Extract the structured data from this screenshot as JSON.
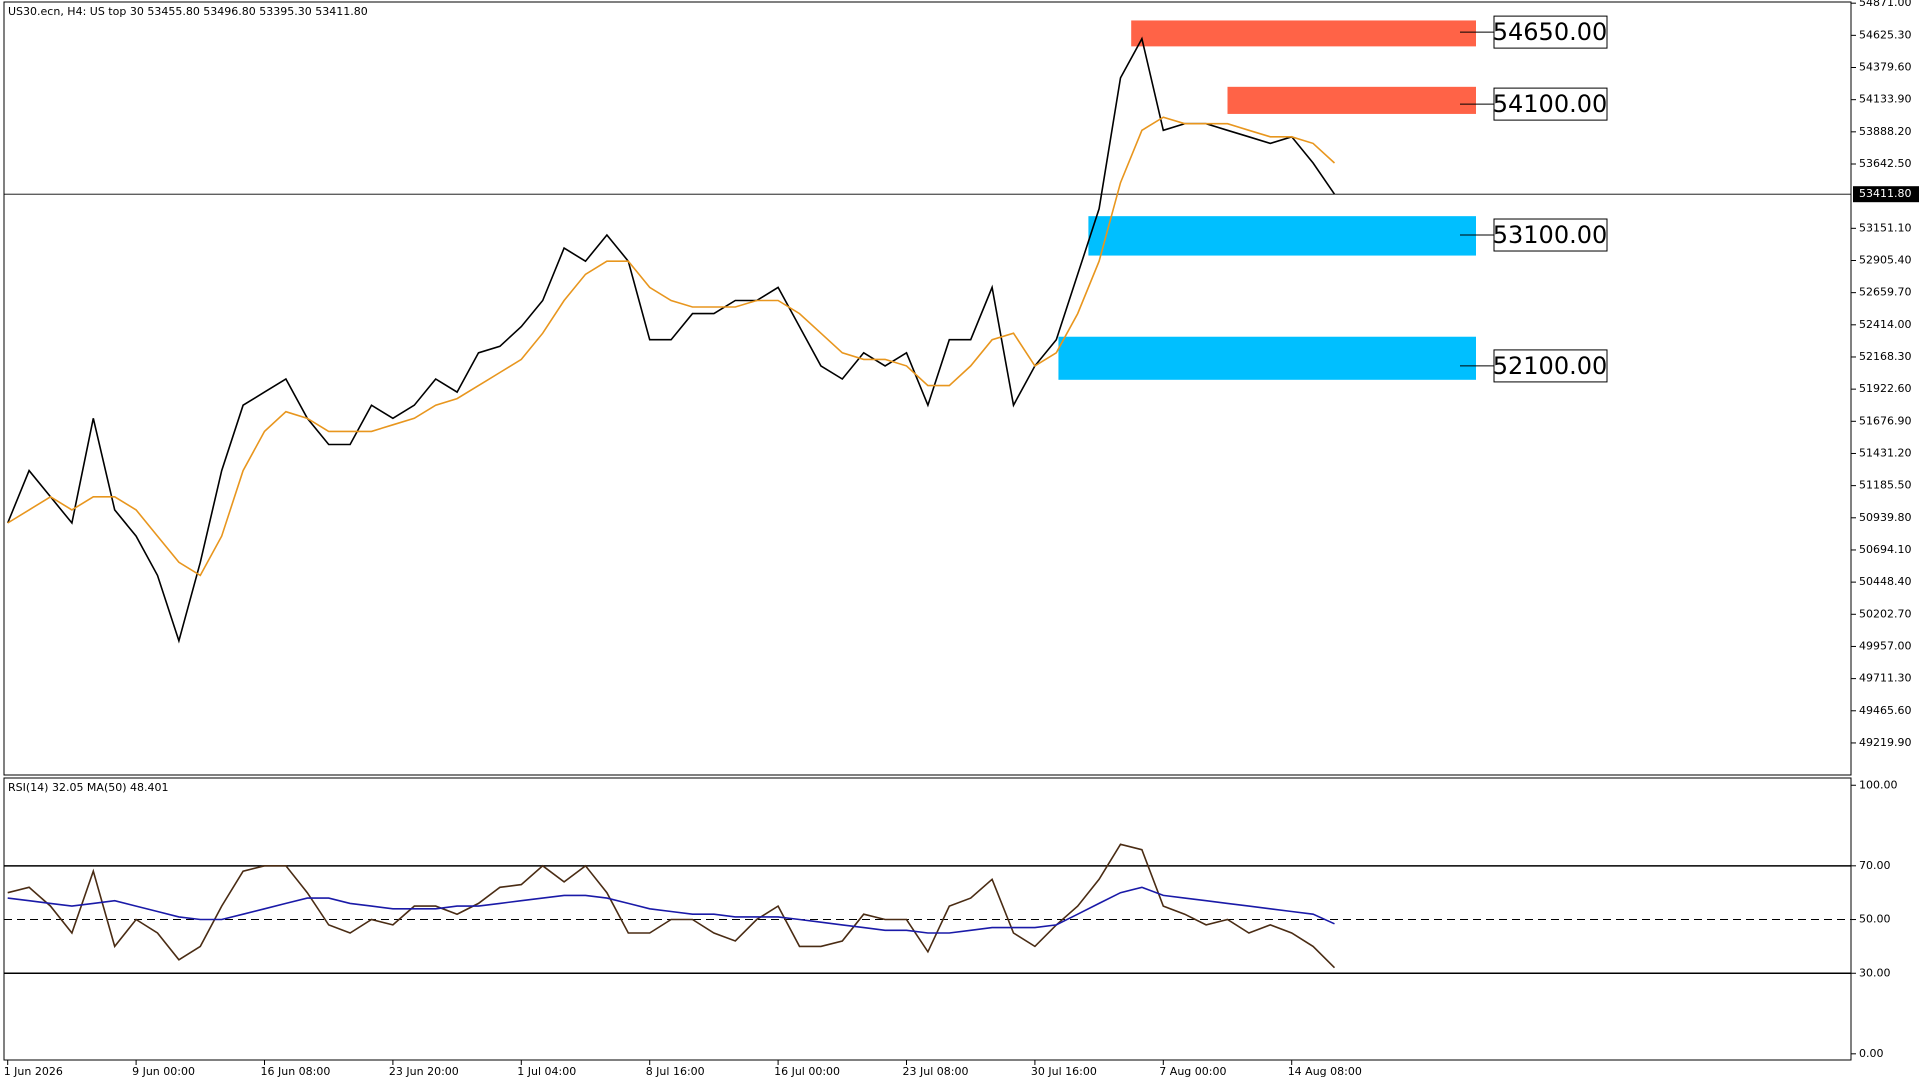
{
  "chart_data": [
    {
      "type": "line",
      "info": "US30.ecn, H4:  US top 30  53455.80 53496.80 53395.30 53411.80",
      "categories": [
        "1 Jun 2026",
        null,
        null,
        null,
        null,
        null,
        "9 Jun 00:00",
        null,
        null,
        null,
        null,
        null,
        "16 Jun 08:00",
        null,
        null,
        null,
        null,
        null,
        "23 Jun 20:00",
        null,
        null,
        null,
        null,
        null,
        "1 Jul 04:00",
        null,
        null,
        null,
        null,
        null,
        "8 Jul 16:00",
        null,
        null,
        null,
        null,
        null,
        "16 Jul 00:00",
        null,
        null,
        null,
        null,
        null,
        "23 Jul 08:00",
        null,
        null,
        null,
        null,
        null,
        "30 Jul 16:00",
        null,
        null,
        null,
        null,
        null,
        "7 Aug 00:00",
        null,
        null,
        null,
        null,
        null,
        "14 Aug 08:00",
        null,
        null
      ],
      "series": [
        {
          "name": "US30.ecn",
          "color": "#000000",
          "values": [
            50900,
            51300,
            51100,
            50900,
            51700,
            51000,
            50800,
            50500,
            50000,
            50600,
            51300,
            51800,
            51900,
            52000,
            51700,
            51500,
            51500,
            51800,
            51700,
            51800,
            52000,
            51900,
            52200,
            52250,
            52400,
            52600,
            53000,
            52900,
            53100,
            52900,
            52300,
            52300,
            52500,
            52500,
            52600,
            52600,
            52700,
            52400,
            52100,
            52000,
            52200,
            52100,
            52200,
            51800,
            52300,
            52300,
            52700,
            51800,
            52100,
            52300,
            52800,
            53300,
            54300,
            54600,
            53900,
            53950,
            53950,
            53900,
            53850,
            53800,
            53850,
            53650,
            53411.8
          ]
        },
        {
          "name": "MA",
          "color": "#e8961e",
          "values": [
            50900,
            51000,
            51100,
            51000,
            51100,
            51100,
            51000,
            50800,
            50600,
            50500,
            50800,
            51300,
            51600,
            51750,
            51700,
            51600,
            51600,
            51600,
            51650,
            51700,
            51800,
            51850,
            51950,
            52050,
            52150,
            52350,
            52600,
            52800,
            52900,
            52900,
            52700,
            52600,
            52550,
            52550,
            52550,
            52600,
            52600,
            52500,
            52350,
            52200,
            52150,
            52150,
            52100,
            51950,
            51950,
            52100,
            52300,
            52350,
            52100,
            52200,
            52500,
            52900,
            53500,
            53900,
            54000,
            53950,
            53950,
            53950,
            53900,
            53850,
            53850,
            53800,
            53650
          ]
        }
      ],
      "ylim": [
        48975,
        54880
      ],
      "yticks": [
        {
          "value": 54871.0,
          "label": "54871.00"
        },
        {
          "value": 54625.3,
          "label": "54625.30"
        },
        {
          "value": 54379.6,
          "label": "54379.60"
        },
        {
          "value": 54133.9,
          "label": "54133.90"
        },
        {
          "value": 53888.2,
          "label": "53888.20"
        },
        {
          "value": 53642.5,
          "label": "53642.50"
        },
        {
          "value": 53151.1,
          "label": "53151.10"
        },
        {
          "value": 52905.4,
          "label": "52905.40"
        },
        {
          "value": 52659.7,
          "label": "52659.70"
        },
        {
          "value": 52414,
          "label": "52414.00"
        },
        {
          "value": 52168.3,
          "label": "52168.30"
        },
        {
          "value": 51922.6,
          "label": "51922.60"
        },
        {
          "value": 51676.9,
          "label": "51676.90"
        },
        {
          "value": 51431.2,
          "label": "51431.20"
        },
        {
          "value": 51185.5,
          "label": "51185.50"
        },
        {
          "value": 50939.8,
          "label": "50939.80"
        },
        {
          "value": 50694.1,
          "label": "50694.10"
        },
        {
          "value": 50448.4,
          "label": "50448.40"
        },
        {
          "value": 50202.7,
          "label": "50202.70"
        },
        {
          "value": 49957,
          "label": "49957.00"
        },
        {
          "value": 49711.3,
          "label": "49711.30"
        },
        {
          "value": 49465.6,
          "label": "49465.60"
        },
        {
          "value": 49219.9,
          "label": "49219.90"
        }
      ],
      "last": {
        "value": 53411.8,
        "label": "53411.80"
      },
      "zones": [
        {
          "label": "54650.00",
          "level": 54650,
          "low": 54541,
          "high": 54739,
          "color": "#ff6347"
        },
        {
          "label": "54100.00",
          "level": 54100,
          "low": 54025,
          "high": 54232,
          "color": "#ff6347"
        },
        {
          "label": "53100.00",
          "level": 53100,
          "low": 52943,
          "high": 53244,
          "color": "#00bfff"
        },
        {
          "label": "52100.00",
          "level": 52100,
          "low": 51994,
          "high": 52323,
          "color": "#00bfff"
        }
      ]
    },
    {
      "type": "line",
      "info": "RSI(14) 32.05 MA(50) 48.401",
      "series": [
        {
          "name": "RSI(14)",
          "color": "#4a2c14",
          "values": [
            60,
            62,
            55,
            45,
            68,
            40,
            50,
            45,
            35,
            40,
            55,
            68,
            70,
            70,
            60,
            48,
            45,
            50,
            48,
            55,
            55,
            52,
            56,
            62,
            63,
            70,
            64,
            70,
            60,
            45,
            45,
            50,
            50,
            45,
            42,
            50,
            55,
            40,
            40,
            42,
            52,
            50,
            50,
            38,
            55,
            58,
            65,
            45,
            40,
            48,
            55,
            65,
            78,
            76,
            55,
            52,
            48,
            50,
            45,
            48,
            45,
            40,
            32.05
          ]
        },
        {
          "name": "MA(50)",
          "color": "#1a1aa8",
          "values": [
            58,
            57,
            56,
            55,
            56,
            57,
            55,
            53,
            51,
            50,
            50,
            52,
            54,
            56,
            58,
            58,
            56,
            55,
            54,
            54,
            54,
            55,
            55,
            56,
            57,
            58,
            59,
            59,
            58,
            56,
            54,
            53,
            52,
            52,
            51,
            51,
            51,
            50,
            49,
            48,
            47,
            46,
            46,
            45,
            45,
            46,
            47,
            47,
            47,
            48,
            52,
            56,
            60,
            62,
            59,
            58,
            57,
            56,
            55,
            54,
            53,
            52,
            48.401
          ]
        }
      ],
      "ylim": [
        -2.3,
        102.7
      ],
      "yticks": [
        {
          "value": 100,
          "label": "100.00"
        },
        {
          "value": 70,
          "label": "70.00"
        },
        {
          "value": 50,
          "label": "50.00"
        },
        {
          "value": 30,
          "label": "30.00"
        },
        {
          "value": 0,
          "label": "0.00"
        }
      ],
      "levels": [
        {
          "value": 70,
          "style": "solid"
        },
        {
          "value": 50,
          "style": "dashed"
        },
        {
          "value": 30,
          "style": "solid"
        }
      ]
    }
  ]
}
